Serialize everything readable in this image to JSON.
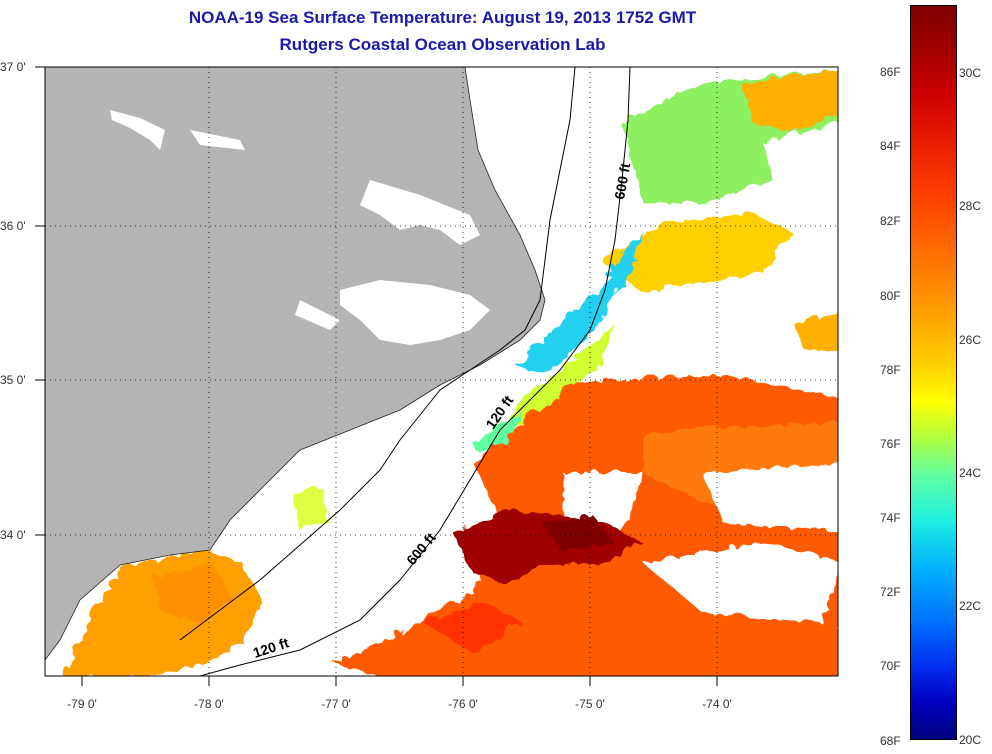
{
  "header": {
    "title": "NOAA-19 Sea Surface Temperature:  August 19, 2013 1752 GMT",
    "subtitle": "Rutgers Coastal Ocean Observation Lab"
  },
  "map": {
    "lat_labels": [
      "37 0'",
      "36 0'",
      "35 0'",
      "34 0'"
    ],
    "lon_labels": [
      "-79 0'",
      "-78 0'",
      "-77 0'",
      "-76 0'",
      "-75 0'",
      "-74 0'"
    ],
    "contour_labels": {
      "c600_north": "600 ft",
      "c120_mid": "120 ft",
      "c600_south": "600 ft",
      "c120_south": "120 ft"
    },
    "colors": {
      "land": "#b4b4b4",
      "no_data": "#ffffff",
      "warm_core": "#a00000",
      "title": "#1a1aa8"
    }
  },
  "colorbar": {
    "fahrenheit": [
      "86F",
      "84F",
      "82F",
      "80F",
      "78F",
      "76F",
      "74F",
      "72F",
      "70F",
      "68F"
    ],
    "celsius": [
      "30C",
      "28C",
      "26C",
      "24C",
      "22C",
      "20C"
    ]
  }
}
